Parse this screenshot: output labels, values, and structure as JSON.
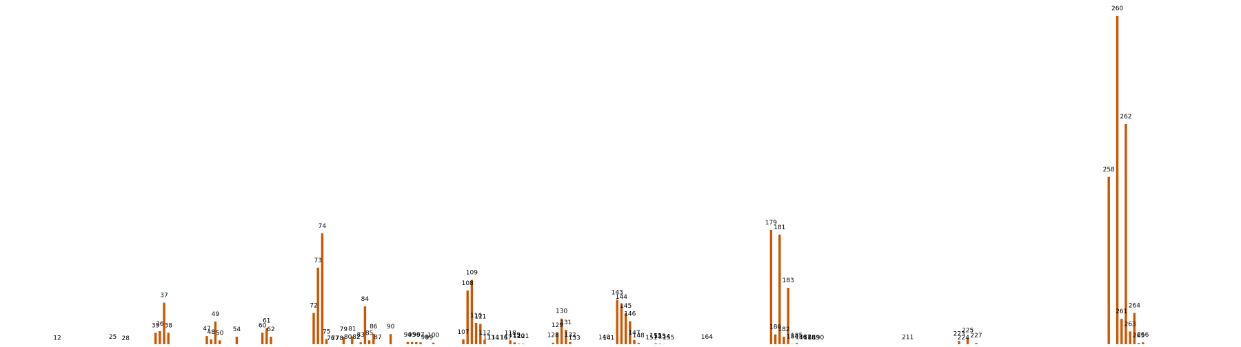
{
  "chart_data": {
    "type": "bar",
    "title": "",
    "xlabel": "",
    "ylabel": "",
    "ylim": [
      0,
      100
    ],
    "bar_color": "#cc5500",
    "categories": [
      12,
      25,
      28,
      35,
      36,
      37,
      38,
      47,
      48,
      49,
      50,
      54,
      60,
      61,
      62,
      72,
      73,
      74,
      75,
      76,
      77,
      78,
      79,
      80,
      81,
      82,
      83,
      84,
      85,
      86,
      87,
      90,
      94,
      95,
      96,
      97,
      98,
      99,
      100,
      107,
      108,
      109,
      110,
      111,
      112,
      113,
      114,
      116,
      117,
      118,
      119,
      120,
      121,
      128,
      129,
      130,
      131,
      132,
      133,
      140,
      141,
      143,
      144,
      145,
      146,
      147,
      148,
      151,
      152,
      153,
      154,
      155,
      164,
      179,
      180,
      181,
      182,
      183,
      184,
      185,
      186,
      187,
      188,
      189,
      190,
      211,
      223,
      224,
      225,
      227,
      258,
      260,
      261,
      262,
      263,
      264,
      265,
      266
    ],
    "values": [
      0.3,
      0.6,
      0.2,
      4.1,
      4.6,
      13.2,
      4.1,
      3.1,
      2.1,
      7.5,
      1.8,
      2.9,
      4.1,
      5.5,
      2.9,
      10.1,
      23.8,
      34.2,
      2.2,
      0.2,
      0.2,
      0.2,
      2.9,
      0.6,
      3.0,
      0.6,
      1.2,
      12.1,
      1.8,
      3.8,
      0.5,
      3.7,
      1.3,
      1.3,
      1.3,
      1.2,
      0.5,
      0.4,
      1.1,
      2.1,
      16.9,
      20.1,
      7.1,
      6.8,
      1.9,
      0.4,
      0.4,
      0.4,
      0.4,
      1.8,
      1.2,
      0.8,
      0.8,
      1.1,
      4.2,
      8.4,
      5.0,
      1.3,
      0.3,
      0.5,
      0.3,
      14.1,
      12.7,
      10.0,
      7.6,
      1.9,
      1.0,
      0.4,
      0.9,
      0.8,
      0.7,
      0.4,
      0.6,
      35.2,
      3.6,
      33.8,
      2.9,
      17.7,
      0.7,
      1.0,
      0.5,
      0.5,
      0.4,
      0.4,
      0.4,
      0.5,
      1.6,
      0.4,
      2.6,
      1.0,
      51.3,
      100.0,
      8.3,
      67.3,
      4.5,
      10.1,
      1.0,
      1.2
    ]
  }
}
